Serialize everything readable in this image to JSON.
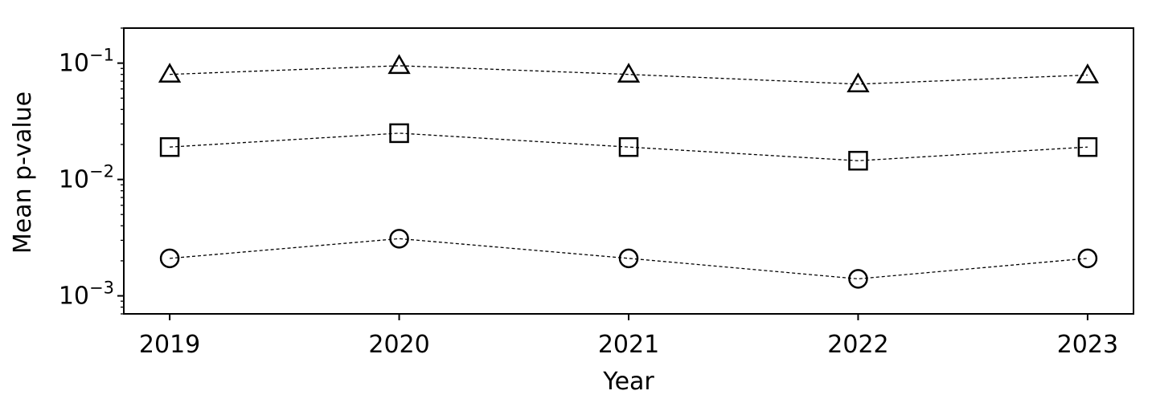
{
  "chart_data": {
    "type": "line",
    "xlabel": "Year",
    "ylabel": "Mean p-value",
    "x": [
      2019,
      2020,
      2021,
      2022,
      2023
    ],
    "xtick_labels": [
      "2019",
      "2020",
      "2021",
      "2022",
      "2023"
    ],
    "yscale": "log",
    "ylim": [
      0.0007,
      0.2
    ],
    "ytick_values": [
      0.001,
      0.01,
      0.1
    ],
    "ytick_labels": [
      {
        "base": "10",
        "exp": "−3"
      },
      {
        "base": "10",
        "exp": "−2"
      },
      {
        "base": "10",
        "exp": "−1"
      }
    ],
    "grid": false,
    "line_style": "dashed",
    "line_color": "#000000",
    "series": [
      {
        "marker": "triangle",
        "values": [
          0.08,
          0.095,
          0.08,
          0.066,
          0.079
        ]
      },
      {
        "marker": "square",
        "values": [
          0.019,
          0.025,
          0.019,
          0.0145,
          0.019
        ]
      },
      {
        "marker": "circle",
        "values": [
          0.0021,
          0.0031,
          0.0021,
          0.0014,
          0.0021
        ]
      }
    ]
  }
}
